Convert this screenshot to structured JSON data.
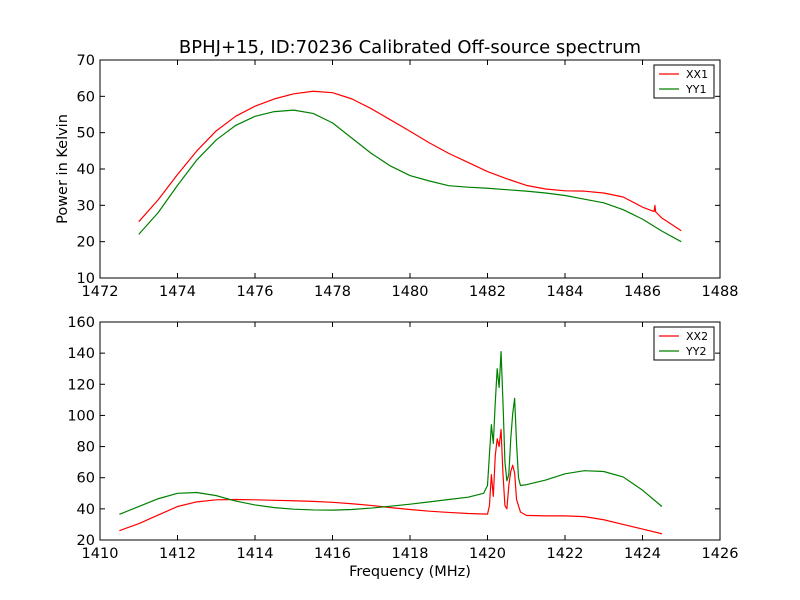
{
  "chart_data": [
    {
      "type": "line",
      "title": "BPHJ+15, ID:70236 Calibrated Off-source spectrum",
      "xlabel": "",
      "ylabel": "Power in Kelvin",
      "xlim": [
        1472,
        1488
      ],
      "ylim": [
        10,
        70
      ],
      "xticks": [
        "1472",
        "1474",
        "1476",
        "1478",
        "1480",
        "1482",
        "1484",
        "1486",
        "1488"
      ],
      "yticks": [
        "10",
        "20",
        "30",
        "40",
        "50",
        "60",
        "70"
      ],
      "legend_position": "top-right",
      "grid": false,
      "series": [
        {
          "name": "XX1",
          "color": "#ff0000",
          "x": [
            1473,
            1473.5,
            1474,
            1474.5,
            1475,
            1475.5,
            1476,
            1476.5,
            1477,
            1477.5,
            1478,
            1478.5,
            1479,
            1479.5,
            1480,
            1480.5,
            1481,
            1481.5,
            1482,
            1482.5,
            1483,
            1483.5,
            1484,
            1484.5,
            1485,
            1485.5,
            1486,
            1486.3,
            1486.32,
            1486.34,
            1486.5,
            1487
          ],
          "y": [
            25.5,
            31.5,
            38.5,
            45,
            50.5,
            54.5,
            57.3,
            59.3,
            60.7,
            61.4,
            61,
            59.3,
            56.6,
            53.5,
            50.4,
            47.2,
            44.3,
            41.8,
            39.3,
            37.3,
            35.5,
            34.5,
            34,
            33.9,
            33.4,
            32.3,
            29.5,
            28.3,
            30,
            28.2,
            26.5,
            23
          ]
        },
        {
          "name": "YY1",
          "color": "#008000",
          "x": [
            1473,
            1473.5,
            1474,
            1474.5,
            1475,
            1475.5,
            1476,
            1476.5,
            1477,
            1477.5,
            1478,
            1478.5,
            1479,
            1479.5,
            1480,
            1480.5,
            1481,
            1481.5,
            1482,
            1482.5,
            1483,
            1483.5,
            1484,
            1484.5,
            1485,
            1485.5,
            1486,
            1486.5,
            1487
          ],
          "y": [
            22,
            28,
            35.5,
            42.5,
            48,
            52,
            54.5,
            55.8,
            56.2,
            55.3,
            52.7,
            48.5,
            44.3,
            40.8,
            38.2,
            36.7,
            35.4,
            35,
            34.7,
            34.3,
            33.9,
            33.4,
            32.7,
            31.7,
            30.7,
            28.8,
            26.2,
            22.9,
            20
          ]
        }
      ]
    },
    {
      "type": "line",
      "title": "",
      "xlabel": "Frequency (MHz)",
      "ylabel": "",
      "xlim": [
        1410,
        1426
      ],
      "ylim": [
        20,
        160
      ],
      "xticks": [
        "1410",
        "1412",
        "1414",
        "1416",
        "1418",
        "1420",
        "1422",
        "1424",
        "1426"
      ],
      "yticks": [
        "20",
        "40",
        "60",
        "80",
        "100",
        "120",
        "140",
        "160"
      ],
      "legend_position": "top-right",
      "grid": false,
      "series": [
        {
          "name": "XX2",
          "color": "#ff0000",
          "x": [
            1410.5,
            1411,
            1411.5,
            1412,
            1412.5,
            1413,
            1413.5,
            1414,
            1414.5,
            1415,
            1415.5,
            1416,
            1416.5,
            1417,
            1417.5,
            1418,
            1418.5,
            1419,
            1419.5,
            1420,
            1420.05,
            1420.1,
            1420.15,
            1420.2,
            1420.25,
            1420.3,
            1420.35,
            1420.4,
            1420.45,
            1420.5,
            1420.55,
            1420.6,
            1420.65,
            1420.7,
            1420.75,
            1420.85,
            1421,
            1421.5,
            1422,
            1422.5,
            1423,
            1423.5,
            1424,
            1424.5
          ],
          "y": [
            26,
            30.5,
            36,
            41.5,
            44.5,
            45.8,
            46,
            45.8,
            45.5,
            45.2,
            44.8,
            44.2,
            43.3,
            42.2,
            40.8,
            39.6,
            38.5,
            37.7,
            37,
            36.6,
            42,
            62,
            48,
            74,
            85,
            80,
            91,
            62,
            42,
            40,
            55,
            64,
            68,
            63,
            46,
            38,
            35.8,
            35.5,
            35.5,
            35,
            33,
            30,
            27,
            24
          ]
        },
        {
          "name": "YY2",
          "color": "#008000",
          "x": [
            1410.5,
            1411,
            1411.5,
            1412,
            1412.5,
            1413,
            1413.5,
            1414,
            1414.5,
            1415,
            1415.5,
            1416,
            1416.5,
            1417,
            1417.5,
            1418,
            1418.5,
            1419,
            1419.5,
            1419.9,
            1420,
            1420.05,
            1420.1,
            1420.15,
            1420.2,
            1420.25,
            1420.3,
            1420.35,
            1420.4,
            1420.45,
            1420.5,
            1420.55,
            1420.6,
            1420.65,
            1420.7,
            1420.75,
            1420.8,
            1420.85,
            1421,
            1421.5,
            1422,
            1422.5,
            1423,
            1423.5,
            1424,
            1424.5
          ],
          "y": [
            36.5,
            41.5,
            46.5,
            50,
            50.5,
            48.5,
            45,
            42.5,
            40.8,
            39.8,
            39.3,
            39.2,
            39.6,
            40.5,
            41.7,
            43,
            44.5,
            46,
            47.5,
            50,
            55,
            75,
            94,
            82,
            108,
            130,
            118,
            141,
            108,
            70,
            58,
            62,
            85,
            101,
            111,
            82,
            60,
            55,
            55.5,
            58.5,
            62.5,
            64.5,
            64,
            60.5,
            52,
            41.5
          ]
        }
      ]
    }
  ]
}
